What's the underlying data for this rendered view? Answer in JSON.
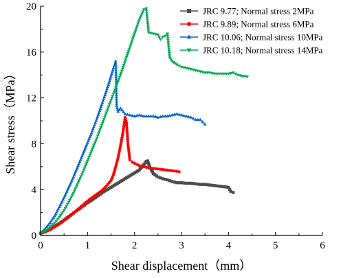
{
  "chart_data": {
    "type": "line",
    "xlabel": "Shear displacement（mm）",
    "ylabel": "Shear stress（MPa）",
    "xlim": [
      0,
      6
    ],
    "ylim": [
      0,
      20
    ],
    "xticks": [
      0,
      1,
      2,
      3,
      4,
      5,
      6
    ],
    "yticks": [
      0,
      4,
      8,
      12,
      16,
      20
    ],
    "grid": false,
    "legend_position": "top-right",
    "series": [
      {
        "name": "JRC  9.77;   Normal stress 2MPa",
        "color": "#4d4d4d",
        "marker": "square",
        "x": [
          0,
          0.1,
          0.2,
          0.3,
          0.4,
          0.5,
          0.6,
          0.7,
          0.8,
          0.9,
          1.0,
          1.1,
          1.2,
          1.3,
          1.4,
          1.5,
          1.6,
          1.7,
          1.8,
          1.9,
          2.0,
          2.1,
          2.15,
          2.2,
          2.25,
          2.28,
          2.32,
          2.4,
          2.5,
          2.6,
          2.7,
          2.8,
          2.9,
          3.0,
          3.1,
          3.2,
          3.3,
          3.4,
          3.5,
          3.6,
          3.7,
          3.8,
          3.9,
          4.0,
          4.05,
          4.1
        ],
        "y": [
          0.2,
          0.35,
          0.55,
          0.8,
          1.05,
          1.35,
          1.65,
          1.95,
          2.25,
          2.55,
          2.85,
          3.1,
          3.4,
          3.7,
          3.95,
          4.2,
          4.45,
          4.7,
          4.95,
          5.2,
          5.45,
          5.7,
          5.95,
          6.2,
          6.45,
          6.5,
          6.0,
          5.4,
          5.1,
          4.95,
          4.85,
          4.7,
          4.6,
          4.6,
          4.55,
          4.55,
          4.5,
          4.45,
          4.45,
          4.4,
          4.35,
          4.3,
          4.25,
          4.2,
          3.85,
          3.75
        ]
      },
      {
        "name": "JRC  9.89;   Normal stress 6MPa",
        "color": "#ff0000",
        "marker": "circle",
        "x": [
          0,
          0.1,
          0.2,
          0.3,
          0.4,
          0.5,
          0.6,
          0.7,
          0.8,
          0.9,
          1.0,
          1.1,
          1.2,
          1.3,
          1.4,
          1.5,
          1.55,
          1.6,
          1.65,
          1.7,
          1.75,
          1.8,
          1.83,
          1.86,
          1.9,
          1.95,
          2.0,
          2.1,
          2.2,
          2.3,
          2.4,
          2.5,
          2.6,
          2.7,
          2.8,
          2.9,
          2.95
        ],
        "y": [
          0.15,
          0.3,
          0.5,
          0.75,
          1.0,
          1.3,
          1.6,
          1.95,
          2.3,
          2.65,
          3.0,
          3.3,
          3.6,
          3.9,
          4.3,
          4.8,
          5.3,
          6.0,
          6.8,
          7.8,
          8.9,
          10.3,
          9.8,
          8.0,
          6.6,
          6.4,
          6.3,
          6.1,
          6.0,
          5.9,
          5.85,
          5.8,
          5.75,
          5.7,
          5.65,
          5.6,
          5.55
        ]
      },
      {
        "name": "JRC  10.06; Normal stress 10MPa",
        "color": "#0066cc",
        "marker": "triangle-up",
        "x": [
          0,
          0.1,
          0.2,
          0.3,
          0.4,
          0.5,
          0.6,
          0.7,
          0.8,
          0.9,
          1.0,
          1.1,
          1.2,
          1.3,
          1.4,
          1.5,
          1.55,
          1.6,
          1.62,
          1.65,
          1.7,
          1.8,
          1.9,
          2.0,
          2.1,
          2.2,
          2.3,
          2.4,
          2.5,
          2.6,
          2.7,
          2.8,
          2.9,
          3.0,
          3.1,
          3.2,
          3.3,
          3.4,
          3.45,
          3.5
        ],
        "y": [
          0.2,
          0.6,
          1.1,
          1.7,
          2.5,
          3.3,
          4.2,
          5.1,
          6.1,
          7.1,
          8.1,
          9.1,
          10.2,
          11.4,
          12.6,
          13.9,
          14.6,
          15.2,
          11.3,
          10.8,
          11.1,
          10.6,
          10.5,
          10.4,
          10.5,
          10.4,
          10.4,
          10.4,
          10.3,
          10.4,
          10.4,
          10.5,
          10.6,
          10.5,
          10.4,
          10.3,
          10.1,
          10.1,
          9.9,
          9.7
        ]
      },
      {
        "name": "JRC  10.18; Normal stress 14MPa",
        "color": "#00aa55",
        "marker": "triangle-down",
        "x": [
          0,
          0.1,
          0.2,
          0.3,
          0.4,
          0.5,
          0.6,
          0.7,
          0.8,
          0.9,
          1.0,
          1.1,
          1.2,
          1.3,
          1.4,
          1.5,
          1.6,
          1.7,
          1.8,
          1.9,
          2.0,
          2.1,
          2.2,
          2.25,
          2.28,
          2.3,
          2.4,
          2.5,
          2.55,
          2.6,
          2.65,
          2.7,
          2.75,
          2.8,
          2.9,
          3.0,
          3.1,
          3.2,
          3.3,
          3.4,
          3.5,
          3.6,
          3.7,
          3.8,
          3.9,
          4.0,
          4.1,
          4.2,
          4.3,
          4.4
        ],
        "y": [
          0.15,
          0.4,
          0.7,
          1.1,
          1.6,
          2.2,
          2.9,
          3.7,
          4.6,
          5.5,
          6.5,
          7.5,
          8.5,
          9.6,
          10.7,
          11.8,
          12.9,
          14.0,
          15.2,
          16.4,
          17.6,
          18.8,
          19.7,
          19.8,
          18.6,
          17.7,
          17.6,
          17.5,
          17.1,
          17.3,
          17.4,
          17.6,
          15.5,
          15.2,
          14.9,
          14.7,
          14.6,
          14.5,
          14.4,
          14.3,
          14.2,
          14.2,
          14.1,
          14.1,
          14.1,
          14.1,
          14.2,
          14.0,
          13.9,
          13.85
        ]
      }
    ]
  }
}
